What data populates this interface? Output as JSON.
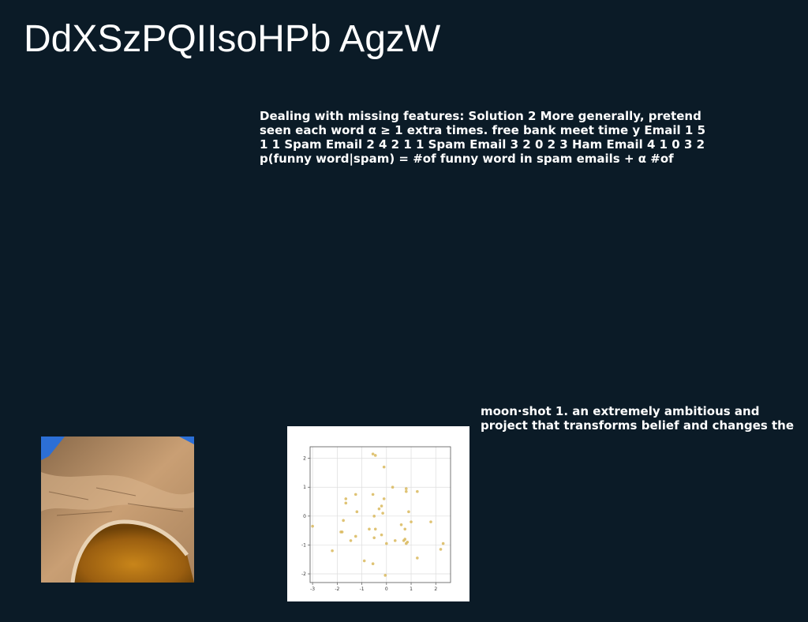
{
  "page": {
    "title": "DdXSzPQIIsoHPb AgzW",
    "background": "#0b1b27"
  },
  "text_block_1": {
    "lines": [
      "Dealing with missing features: Solution 2 More generally, pretend",
      "seen each word α ≥ 1 extra times. free bank meet time y Email 1 5",
      "1 1 Spam Email 2 4 2 1 1 Spam Email 3 2 0 2 3 Ham Email 4 1 0 3 2",
      "p(funny word|spam) = #of funny word in spam emails + α #of"
    ]
  },
  "text_block_2": {
    "lines": [
      "moon·shot 1. an extremely ambitious and",
      "project that transforms belief and changes the"
    ]
  },
  "photo": {
    "icon": "canyon-photo"
  },
  "chart_data": {
    "type": "scatter",
    "title": "",
    "xlabel": "",
    "ylabel": "",
    "xlim": [
      -3.1,
      2.6
    ],
    "ylim": [
      -2.3,
      2.4
    ],
    "grid": true,
    "point_color": "#d9b95c",
    "xticks": [
      "-3",
      "-2",
      "-1",
      "0",
      "1",
      "2"
    ],
    "yticks": [
      "-2",
      "-1",
      "0",
      "1",
      "2"
    ],
    "series": [
      {
        "x": [
          -0.55,
          -0.45,
          -0.1,
          0.25,
          0.8,
          0.8,
          1.25,
          -1.65,
          -1.65,
          -1.25,
          -0.55,
          -0.1,
          -0.2,
          -0.3,
          -0.15,
          -1.2,
          -0.5,
          -0.7,
          -0.45,
          -1.75,
          -1.8,
          -1.85,
          0.9,
          1.0,
          1.8,
          0.6,
          0.75,
          -3.0,
          0.75,
          0.35,
          0.7,
          0.85,
          -0.5,
          -1.45,
          -1.25,
          0.0,
          0.8,
          -2.2,
          2.3,
          2.2,
          1.25,
          -0.9,
          -0.55,
          -0.05,
          -0.2
        ],
        "y": [
          2.15,
          2.1,
          1.7,
          1.0,
          0.95,
          0.85,
          0.85,
          0.6,
          0.45,
          0.75,
          0.75,
          0.6,
          0.35,
          0.25,
          0.1,
          0.15,
          0.0,
          -0.45,
          -0.45,
          -0.15,
          -0.55,
          -0.55,
          0.15,
          -0.2,
          -0.2,
          -0.3,
          -0.45,
          -0.35,
          -0.8,
          -0.85,
          -0.85,
          -0.9,
          -0.75,
          -0.85,
          -0.7,
          -0.95,
          -0.95,
          -1.2,
          -0.95,
          -1.15,
          -1.45,
          -1.55,
          -1.65,
          -2.05,
          -0.65
        ]
      }
    ]
  }
}
